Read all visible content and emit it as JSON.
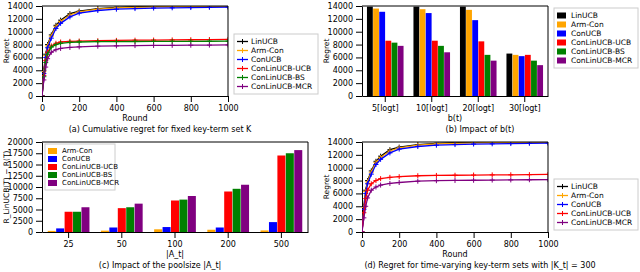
{
  "chart_data": [
    {
      "type": "line",
      "title": "(a) Cumulative regret for fixed key-term set K",
      "xlabel": "Round",
      "ylabel": "Regret",
      "x": [
        0,
        10,
        20,
        30,
        50,
        75,
        100,
        150,
        200,
        300,
        400,
        500,
        600,
        700,
        800,
        900,
        1000
      ],
      "series": [
        {
          "name": "LinUCB",
          "color": "black",
          "values": [
            0,
            4000,
            6500,
            8000,
            9500,
            11000,
            11800,
            12800,
            13200,
            13600,
            13800,
            13900,
            13950,
            13970,
            13980,
            13990,
            14000
          ]
        },
        {
          "name": "Arm-Con",
          "color": "orange",
          "values": [
            0,
            3800,
            6300,
            7800,
            9300,
            10800,
            11600,
            12600,
            13100,
            13500,
            13700,
            13800,
            13850,
            13900,
            13920,
            13940,
            13960
          ]
        },
        {
          "name": "ConUCB",
          "color": "blue",
          "values": [
            0,
            3500,
            6000,
            7500,
            9000,
            10500,
            11300,
            12300,
            12900,
            13300,
            13500,
            13600,
            13680,
            13720,
            13760,
            13800,
            13830
          ]
        },
        {
          "name": "ConLinUCB-UCB",
          "color": "red",
          "values": [
            0,
            3200,
            5500,
            6800,
            7800,
            8200,
            8400,
            8500,
            8550,
            8600,
            8650,
            8680,
            8700,
            8720,
            8750,
            8780,
            8800
          ]
        },
        {
          "name": "ConLinUCB-BS",
          "color": "green",
          "values": [
            0,
            3000,
            5200,
            6500,
            7600,
            8000,
            8200,
            8350,
            8400,
            8450,
            8470,
            8480,
            8490,
            8500,
            8510,
            8520,
            8530
          ]
        },
        {
          "name": "ConLinUCB-MCR",
          "color": "purple",
          "values": [
            0,
            2500,
            4500,
            5800,
            6800,
            7200,
            7400,
            7550,
            7650,
            7750,
            7800,
            7840,
            7860,
            7880,
            7900,
            7920,
            7940
          ]
        }
      ],
      "xlim": [
        0,
        1000
      ],
      "xticks": [
        0,
        200,
        400,
        600,
        800,
        1000
      ],
      "ylim": [
        0,
        14000
      ],
      "yticks": [
        0,
        2000,
        4000,
        6000,
        8000,
        10000,
        12000,
        14000
      ],
      "marker": "plus",
      "legend": "lower right",
      "grid": false
    },
    {
      "type": "bar",
      "title": "(b) Impact of b(t)",
      "xlabel": "b(t)",
      "ylabel": "Regret",
      "categories": [
        "5[logt]",
        "10[logt]",
        "20[logt]",
        "30[logt]"
      ],
      "series": [
        {
          "name": "LinUCB",
          "color": "black",
          "values": [
            13900,
            13900,
            13900,
            6600
          ]
        },
        {
          "name": "Arm-Con",
          "color": "orange",
          "values": [
            13600,
            13500,
            13400,
            6400
          ]
        },
        {
          "name": "ConUCB",
          "color": "blue",
          "values": [
            13100,
            12900,
            11800,
            6200
          ]
        },
        {
          "name": "ConLinUCB-UCB",
          "color": "red",
          "values": [
            8600,
            8600,
            8500,
            6400
          ]
        },
        {
          "name": "ConLinUCB-BS",
          "color": "green",
          "values": [
            8300,
            7800,
            6400,
            5500
          ]
        },
        {
          "name": "ConLinUCB-MCR",
          "color": "purple",
          "values": [
            7800,
            6800,
            5500,
            4800
          ]
        }
      ],
      "ylim": [
        0,
        14000
      ],
      "yticks": [
        0,
        2000,
        4000,
        6000,
        8000,
        10000,
        12000,
        14000
      ],
      "legend": "upper right",
      "grid": false
    },
    {
      "type": "bar",
      "title": "(c) Impact of the poolsize |A_t|",
      "xlabel": "|A_t|",
      "ylabel": "R_LinUCB(T) − R(T)",
      "categories": [
        "25",
        "50",
        "100",
        "200",
        "500"
      ],
      "series": [
        {
          "name": "Arm-Con",
          "color": "orange",
          "values": [
            250,
            300,
            600,
            500,
            350
          ]
        },
        {
          "name": "ConUCB",
          "color": "blue",
          "values": [
            800,
            1000,
            1100,
            1000,
            2200
          ]
        },
        {
          "name": "ConLinUCB-UCB",
          "color": "red",
          "values": [
            4500,
            5300,
            7000,
            9000,
            17000
          ]
        },
        {
          "name": "ConLinUCB-BS",
          "color": "green",
          "values": [
            4500,
            5500,
            7200,
            9600,
            17500
          ]
        },
        {
          "name": "ConLinUCB-MCR",
          "color": "purple",
          "values": [
            5500,
            6300,
            8000,
            10500,
            18200
          ]
        }
      ],
      "ylim": [
        0,
        20000
      ],
      "yticks": [
        0,
        2500,
        5000,
        7500,
        10000,
        12500,
        15000,
        17500,
        20000
      ],
      "legend": "upper left",
      "grid": false
    },
    {
      "type": "line",
      "title": "(d) Regret for time-varying key-term sets with |K_t| = 300",
      "xlabel": "Round",
      "ylabel": "Regret",
      "x": [
        0,
        10,
        20,
        30,
        50,
        75,
        100,
        150,
        200,
        300,
        400,
        500,
        600,
        700,
        800,
        900,
        1000
      ],
      "series": [
        {
          "name": "LinUCB",
          "color": "black",
          "values": [
            0,
            4000,
            6500,
            8000,
            9500,
            11000,
            11800,
            12800,
            13200,
            13600,
            13800,
            13900,
            13950,
            13970,
            13980,
            13990,
            14000
          ]
        },
        {
          "name": "Arm-Con",
          "color": "orange",
          "values": [
            0,
            3800,
            6300,
            7800,
            9300,
            10800,
            11600,
            12600,
            13100,
            13500,
            13700,
            13800,
            13850,
            13900,
            13920,
            13940,
            13960
          ]
        },
        {
          "name": "ConUCB",
          "color": "blue",
          "values": [
            0,
            3500,
            6000,
            7500,
            9000,
            10500,
            11300,
            12300,
            12900,
            13300,
            13500,
            13600,
            13680,
            13720,
            13760,
            13800,
            13830
          ]
        },
        {
          "name": "ConLinUCB-UCB",
          "color": "red",
          "values": [
            0,
            3000,
            5200,
            6500,
            7500,
            8000,
            8300,
            8500,
            8600,
            8750,
            8800,
            8830,
            8860,
            8880,
            8900,
            8920,
            8950
          ]
        },
        {
          "name": "ConLinUCB-MCR",
          "color": "purple",
          "values": [
            0,
            2200,
            4000,
            5300,
            6500,
            7000,
            7300,
            7550,
            7700,
            7900,
            7980,
            8020,
            8050,
            8080,
            8100,
            8130,
            8150
          ]
        }
      ],
      "xlim": [
        0,
        1000
      ],
      "xticks": [
        0,
        200,
        400,
        600,
        800,
        1000
      ],
      "ylim": [
        0,
        14000
      ],
      "yticks": [
        0,
        2000,
        4000,
        6000,
        8000,
        10000,
        12000,
        14000
      ],
      "marker": "plus",
      "legend": "lower right",
      "grid": false
    }
  ]
}
